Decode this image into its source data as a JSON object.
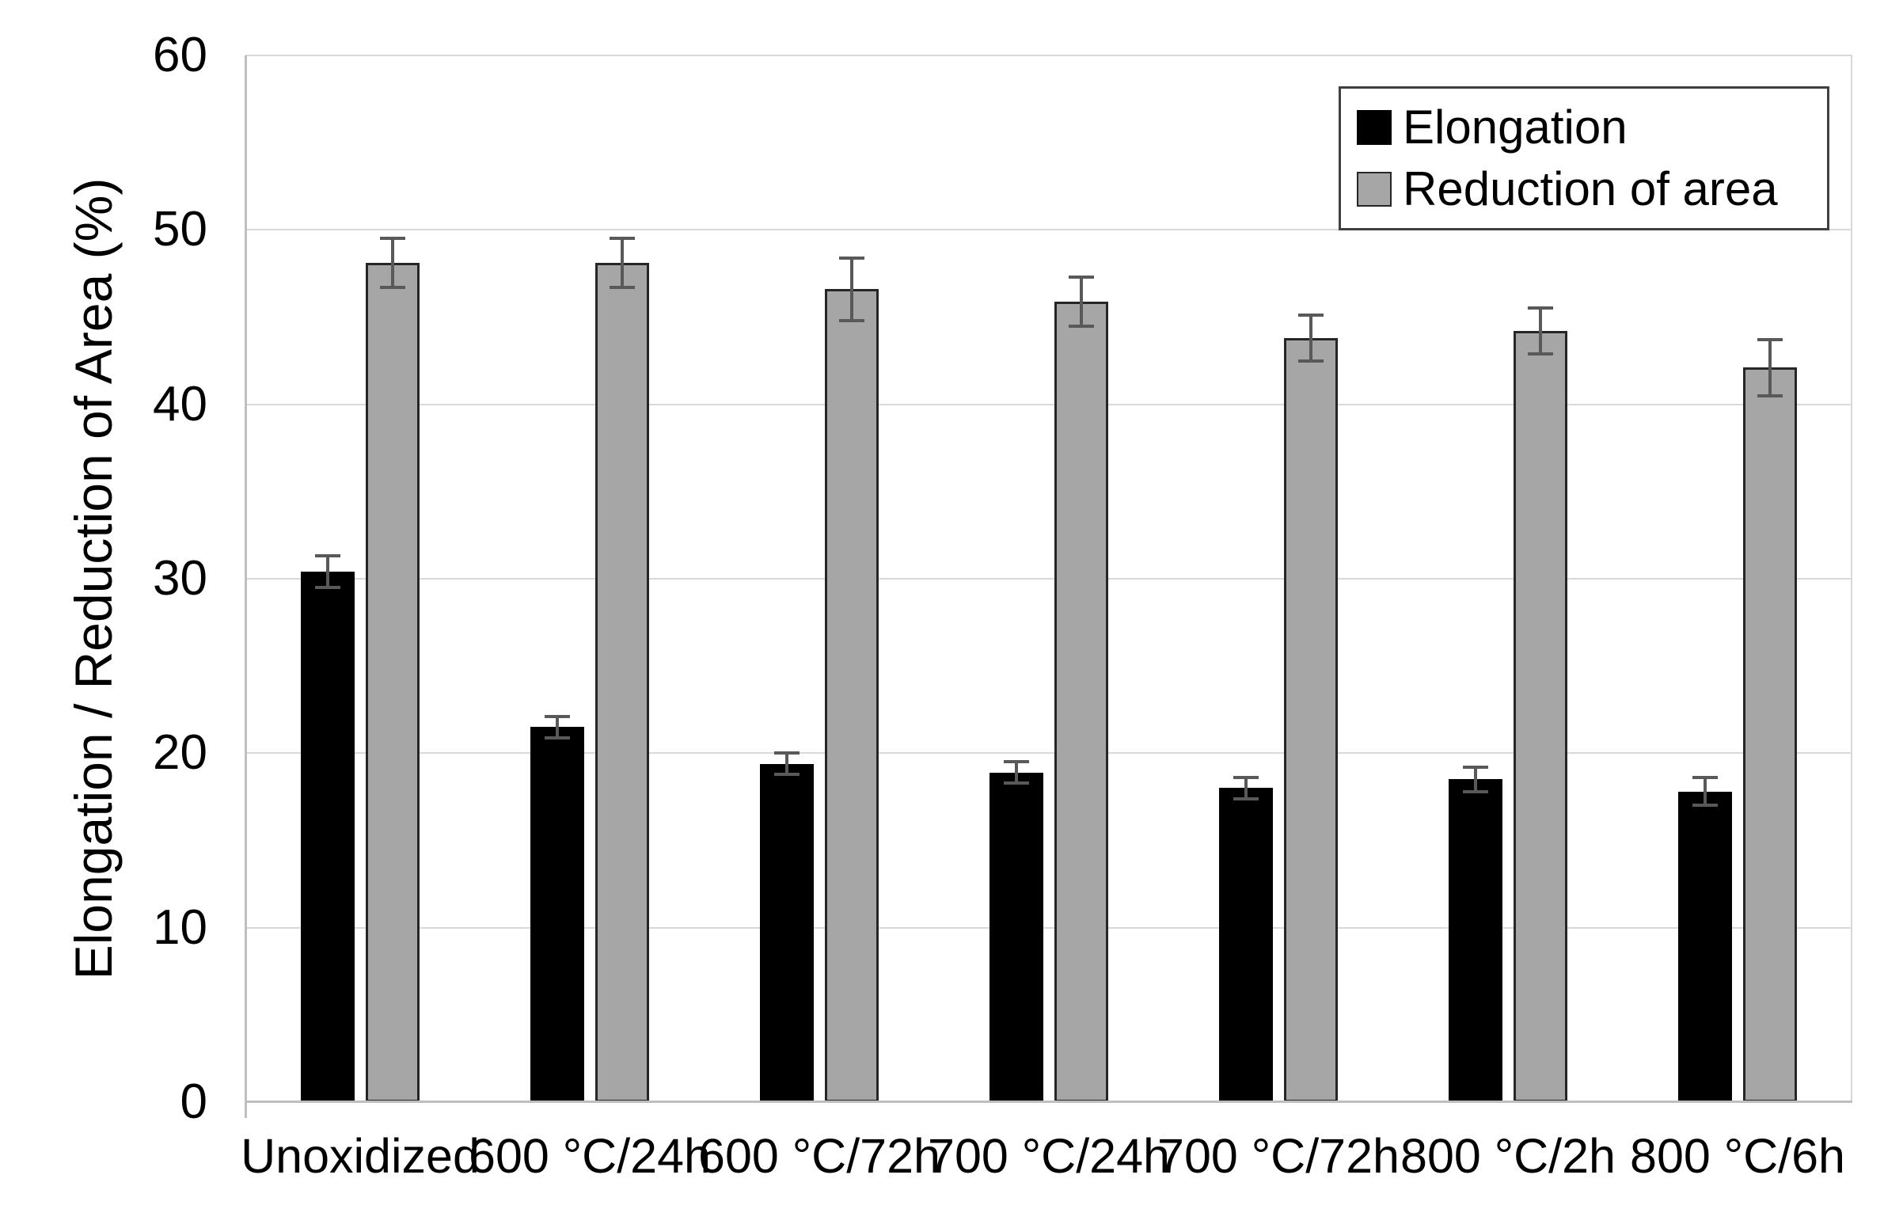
{
  "chart_data": {
    "type": "bar",
    "title": "",
    "xlabel": "",
    "ylabel": "Elongation / Reduction of Area (%)",
    "ylim": [
      0,
      60
    ],
    "ytick_step": 10,
    "grid": true,
    "legend_position": "top-right",
    "categories": [
      "Unoxidized",
      "600 °C/24h",
      "600 °C/72h",
      "700 °C/24h",
      "700 °C/72h",
      "800 °C/2h",
      "800 °C/6h"
    ],
    "series": [
      {
        "name": "Elongation",
        "color": "#000000",
        "values": [
          30.4,
          21.5,
          19.4,
          18.9,
          18.0,
          18.5,
          17.8
        ],
        "errors": [
          0.9,
          0.6,
          0.6,
          0.6,
          0.6,
          0.7,
          0.8
        ]
      },
      {
        "name": "Reduction of area",
        "color": "#a6a6a6",
        "values": [
          48.1,
          48.1,
          46.6,
          45.9,
          43.8,
          44.2,
          42.1
        ],
        "errors": [
          1.4,
          1.4,
          1.8,
          1.4,
          1.3,
          1.3,
          1.6
        ]
      }
    ],
    "yticks": [
      0,
      10,
      20,
      30,
      40,
      50,
      60
    ],
    "colors": {
      "background": "#ffffff",
      "gridline": "#d9d9d9",
      "axis_line": "#bfbfbf",
      "error_bar": "#595959",
      "bar_border": "#262626",
      "legend_border": "#404040"
    }
  }
}
